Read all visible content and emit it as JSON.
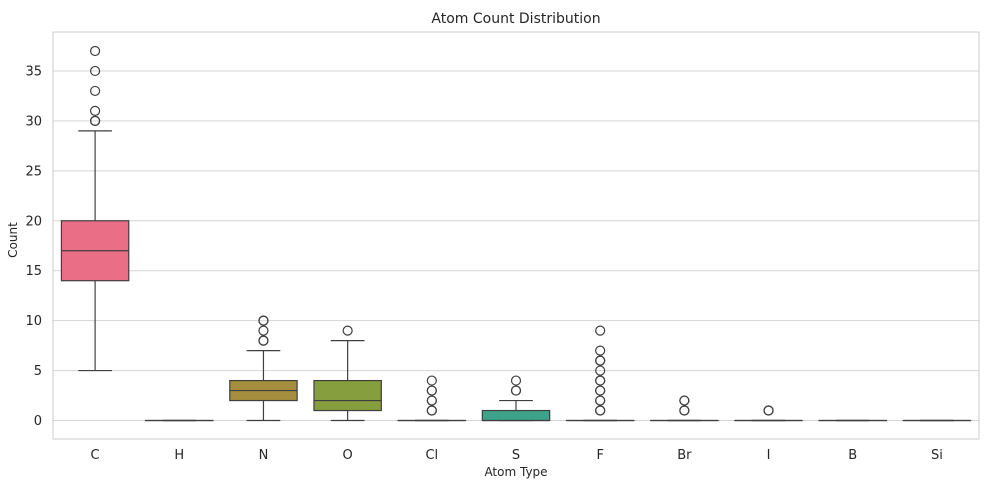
{
  "chart_data": {
    "type": "box",
    "title": "Atom Count Distribution",
    "xlabel": "Atom Type",
    "ylabel": "Count",
    "ylim": [
      -1.85,
      38.9
    ],
    "yticks": [
      0,
      5,
      10,
      15,
      20,
      25,
      30,
      35
    ],
    "grid": "horizontal",
    "categories": [
      "C",
      "H",
      "N",
      "O",
      "Cl",
      "S",
      "F",
      "Br",
      "I",
      "B",
      "Si"
    ],
    "colors": [
      "#ea6f86",
      "#cf8a3a",
      "#a58e3d",
      "#869e3e",
      "#3d9e59",
      "#3da48b",
      "#3fa1a0",
      "#46a2c2",
      "#7b96e8",
      "#c37cec",
      "#e96dc0"
    ],
    "boxes": [
      {
        "category": "C",
        "whisker_low": 5,
        "q1": 14,
        "median": 17,
        "q3": 20,
        "whisker_high": 29,
        "outliers": [
          30,
          30,
          31,
          33,
          35,
          37
        ]
      },
      {
        "category": "H",
        "whisker_low": 0,
        "q1": 0,
        "median": 0,
        "q3": 0,
        "whisker_high": 0,
        "outliers": []
      },
      {
        "category": "N",
        "whisker_low": 0,
        "q1": 2,
        "median": 3,
        "q3": 4,
        "whisker_high": 7,
        "outliers": [
          8,
          8,
          9,
          10,
          10
        ]
      },
      {
        "category": "O",
        "whisker_low": 0,
        "q1": 1,
        "median": 2,
        "q3": 4,
        "whisker_high": 8,
        "outliers": [
          9
        ]
      },
      {
        "category": "Cl",
        "whisker_low": 0,
        "q1": 0,
        "median": 0,
        "q3": 0,
        "whisker_high": 0,
        "outliers": [
          1,
          1,
          2,
          2,
          3,
          3,
          4
        ]
      },
      {
        "category": "S",
        "whisker_low": 0,
        "q1": 0,
        "median": 0,
        "q3": 1,
        "whisker_high": 2,
        "outliers": [
          3,
          3,
          4
        ]
      },
      {
        "category": "F",
        "whisker_low": 0,
        "q1": 0,
        "median": 0,
        "q3": 0,
        "whisker_high": 0,
        "outliers": [
          1,
          1,
          2,
          2,
          3,
          3,
          4,
          4,
          5,
          6,
          6,
          7,
          9
        ]
      },
      {
        "category": "Br",
        "whisker_low": 0,
        "q1": 0,
        "median": 0,
        "q3": 0,
        "whisker_high": 0,
        "outliers": [
          1,
          1,
          2,
          2
        ]
      },
      {
        "category": "I",
        "whisker_low": 0,
        "q1": 0,
        "median": 0,
        "q3": 0,
        "whisker_high": 0,
        "outliers": [
          1,
          1
        ]
      },
      {
        "category": "B",
        "whisker_low": 0,
        "q1": 0,
        "median": 0,
        "q3": 0,
        "whisker_high": 0,
        "outliers": []
      },
      {
        "category": "Si",
        "whisker_low": 0,
        "q1": 0,
        "median": 0,
        "q3": 0,
        "whisker_high": 0,
        "outliers": []
      }
    ]
  }
}
